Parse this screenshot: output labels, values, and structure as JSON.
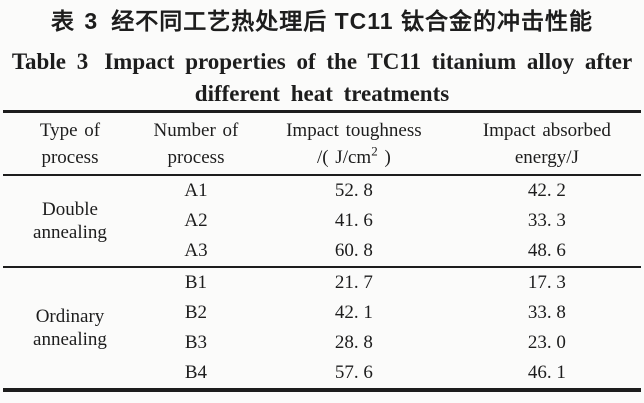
{
  "colors": {
    "text": "#1d1d1d",
    "background": "#fbfbfa",
    "rule": "#1d1d1d"
  },
  "caption": {
    "zh_label": "表 3",
    "zh_text": "经不同工艺热处理后 TC11 钛合金的冲击性能",
    "en_label": "Table 3",
    "en_line1": "Impact properties of the TC11 titanium alloy after",
    "en_line2": "different heat treatments"
  },
  "table": {
    "columns": [
      {
        "line1": "Type of",
        "line2": "process"
      },
      {
        "line1": "Number of",
        "line2": "process"
      },
      {
        "line1": "Impact toughness",
        "line2_pre": "/( J/cm",
        "line2_sup": "2",
        "line2_post": " )"
      },
      {
        "line1": "Impact absorbed",
        "line2": "energy/J"
      }
    ],
    "groups": [
      {
        "label": "Double annealing",
        "rows": [
          {
            "number": "A1",
            "toughness": "52. 8",
            "energy": "42. 2"
          },
          {
            "number": "A2",
            "toughness": "41. 6",
            "energy": "33. 3"
          },
          {
            "number": "A3",
            "toughness": "60. 8",
            "energy": "48. 6"
          }
        ]
      },
      {
        "label": "Ordinary annealing",
        "rows": [
          {
            "number": "B1",
            "toughness": "21. 7",
            "energy": "17. 3"
          },
          {
            "number": "B2",
            "toughness": "42. 1",
            "energy": "33. 8"
          },
          {
            "number": "B3",
            "toughness": "28. 8",
            "energy": "23. 0"
          },
          {
            "number": "B4",
            "toughness": "57. 6",
            "energy": "46. 1"
          }
        ]
      }
    ]
  }
}
